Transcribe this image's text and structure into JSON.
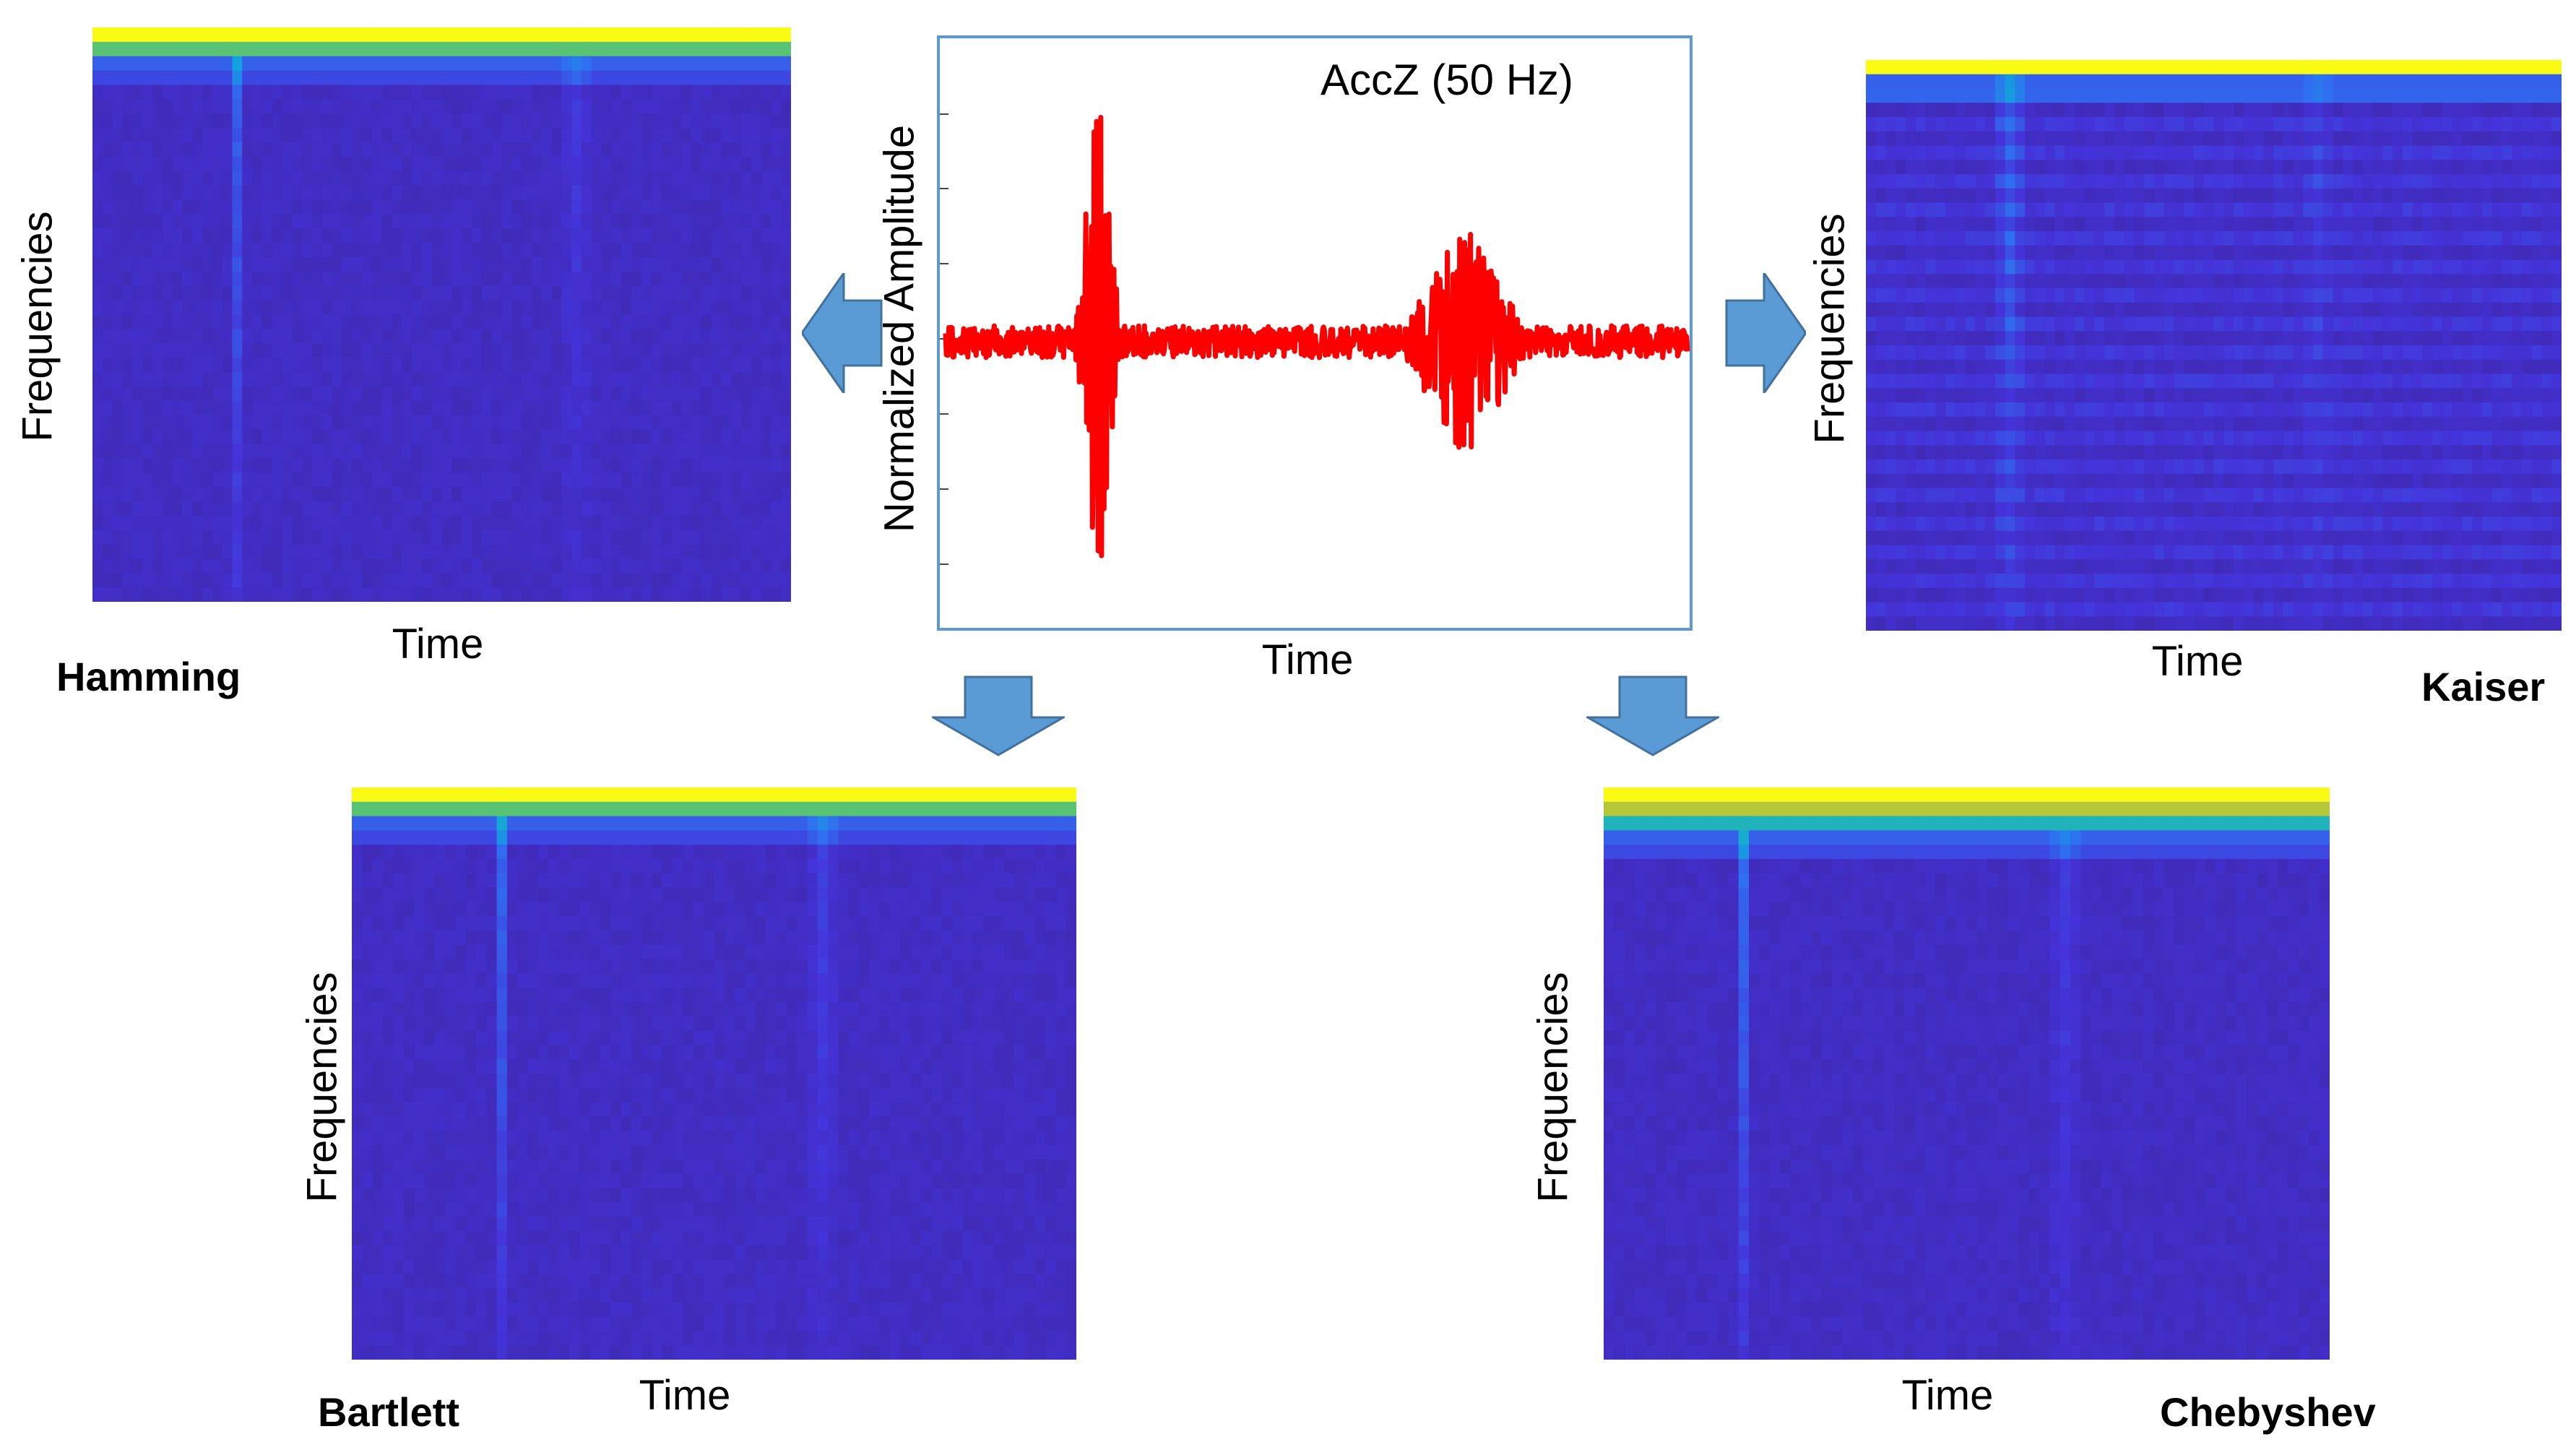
{
  "signal": {
    "title": "AccZ (50 Hz)",
    "ylabel": "Normalized Amplitude",
    "xlabel": "Time",
    "line_color": "#ff0000",
    "frame_color": "#5b9bd5"
  },
  "spectrogram_common": {
    "ylabel": "Frequencies",
    "xlabel": "Time",
    "colormap": [
      "#3e26a8",
      "#4433d9",
      "#2f6ff0",
      "#13a4de",
      "#2dc295",
      "#9fc83a",
      "#f6c034",
      "#f9fb15"
    ]
  },
  "windows": {
    "hamming": {
      "name": "Hamming"
    },
    "kaiser": {
      "name": "Kaiser"
    },
    "bartlett": {
      "name": "Bartlett"
    },
    "chebyshev": {
      "name": "Chebyshev"
    }
  },
  "arrow_color": "#5b9bd5"
}
